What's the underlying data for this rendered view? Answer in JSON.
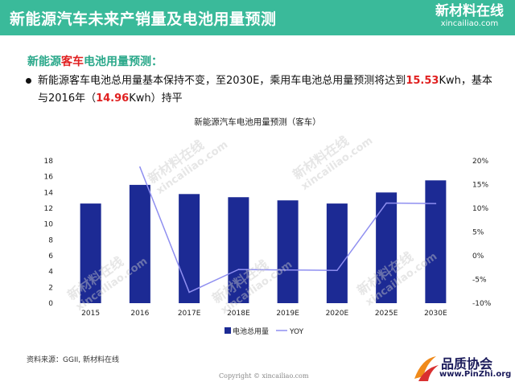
{
  "header": {
    "title": "新能源汽车未来产销量及电池用量预测",
    "logo_main": "新材料在线",
    "logo_sub": "xincailiao.com"
  },
  "section": {
    "title_pre": "新能源",
    "title_hl": "客车",
    "title_post": "电池用量预测："
  },
  "bullet": {
    "t1": "新能源客车电池总用量基本保持不变，至2030E，乘用车电池总用量预测将达到",
    "v1": "15.53",
    "t2": "Kwh，基本与2016年（",
    "v2": "14.96",
    "t3": "Kwh）持平"
  },
  "watermark": {
    "line1": "新材料在线",
    "line2": "xincailiao.com"
  },
  "chart_data": {
    "type": "bar",
    "title": "新能源汽车电池用量预测（客车）",
    "categories": [
      "2015",
      "2016",
      "2017E",
      "2018E",
      "2019E",
      "2020E",
      "2025E",
      "2030E"
    ],
    "series": [
      {
        "name": "电池总用量",
        "type": "bar",
        "axis": "left",
        "color": "#1c2a94",
        "values": [
          12.6,
          14.96,
          13.8,
          13.4,
          13.0,
          12.6,
          14.0,
          15.53
        ]
      },
      {
        "name": "YOY",
        "type": "line",
        "axis": "right",
        "color": "#8f8ff0",
        "values": [
          null,
          18.7,
          -7.7,
          -2.9,
          -3.0,
          -3.1,
          11.1,
          11.0
        ]
      }
    ],
    "left_axis": {
      "min": 0,
      "max": 18,
      "ticks": [
        "0",
        "2",
        "4",
        "6",
        "8",
        "10",
        "12",
        "14",
        "16",
        "18"
      ]
    },
    "right_axis": {
      "min": -10,
      "max": 20,
      "ticks": [
        "-10%",
        "-5%",
        "0%",
        "5%",
        "10%",
        "15%",
        "20%"
      ]
    },
    "legend_position": "bottom",
    "grid": false
  },
  "footer": {
    "source": "资料来源：GGII, 新材料在线",
    "copyright": "Copyright © xincailiao.com",
    "brand_name": "品质协会",
    "brand_url": "www.PinZhi.org"
  }
}
